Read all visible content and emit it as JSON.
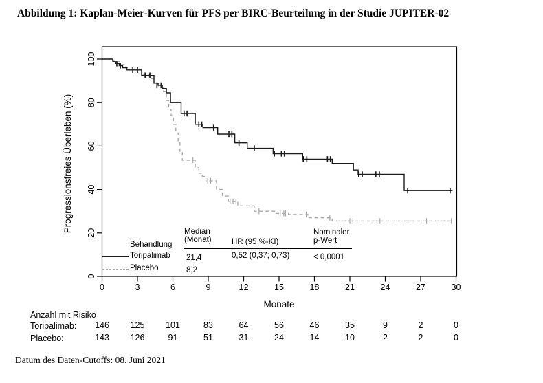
{
  "title": "Abbildung 1: Kaplan-Meier-Kurven für PFS per BIRC-Beurteilung in der Studie JUPITER-02",
  "footer": "Datum des Daten-Cutoffs: 08. Juni 2021",
  "chart_data": {
    "type": "line",
    "subtype": "kaplan-meier-step",
    "xlabel": "Monate",
    "ylabel": "Progressionsfreies  Überleben  (%)",
    "xlim": [
      0,
      30
    ],
    "ylim": [
      0,
      100
    ],
    "x_ticks": [
      0,
      3,
      6,
      9,
      12,
      15,
      18,
      21,
      24,
      27,
      30
    ],
    "y_ticks": [
      0,
      20,
      40,
      60,
      80,
      100
    ],
    "grid": false,
    "frame": true,
    "series": [
      {
        "name": "Toripalimab",
        "style": "solid",
        "color": "#1c1c1c",
        "steps": [
          [
            0,
            100
          ],
          [
            0.9,
            99
          ],
          [
            1.15,
            98
          ],
          [
            1.45,
            97
          ],
          [
            1.75,
            96
          ],
          [
            2.1,
            95
          ],
          [
            3.35,
            92.5
          ],
          [
            4.4,
            89
          ],
          [
            4.75,
            88
          ],
          [
            5.1,
            86.5
          ],
          [
            5.45,
            84.5
          ],
          [
            5.8,
            80
          ],
          [
            6.7,
            75
          ],
          [
            7.9,
            70
          ],
          [
            8.55,
            68.5
          ],
          [
            9.8,
            65.5
          ],
          [
            11.25,
            61.5
          ],
          [
            12.3,
            59
          ],
          [
            14.5,
            56.5
          ],
          [
            17.0,
            54
          ],
          [
            19.5,
            52
          ],
          [
            21.3,
            49
          ],
          [
            21.7,
            47
          ],
          [
            25.6,
            39.5
          ],
          [
            29.7,
            39.5
          ]
        ],
        "censors": [
          [
            1.25,
            98
          ],
          [
            1.55,
            97
          ],
          [
            2.6,
            95
          ],
          [
            3.0,
            95
          ],
          [
            3.65,
            92.5
          ],
          [
            4.05,
            92.5
          ],
          [
            4.65,
            88
          ],
          [
            5.0,
            88
          ],
          [
            6.95,
            75
          ],
          [
            7.2,
            75
          ],
          [
            8.2,
            70
          ],
          [
            8.45,
            70
          ],
          [
            9.45,
            68.5
          ],
          [
            10.75,
            65.5
          ],
          [
            11.0,
            65.5
          ],
          [
            11.6,
            61.5
          ],
          [
            12.9,
            59
          ],
          [
            14.6,
            56.5
          ],
          [
            15.2,
            56.5
          ],
          [
            15.45,
            56.5
          ],
          [
            17.05,
            54
          ],
          [
            17.35,
            54
          ],
          [
            19.1,
            54
          ],
          [
            19.35,
            54
          ],
          [
            21.75,
            47
          ],
          [
            22.05,
            47
          ],
          [
            23.2,
            47
          ],
          [
            23.5,
            47
          ],
          [
            25.9,
            39.5
          ],
          [
            29.5,
            39.5
          ]
        ]
      },
      {
        "name": "Placebo",
        "style": "dashed",
        "color": "#a8a8a8",
        "steps": [
          [
            0,
            100
          ],
          [
            1.0,
            99
          ],
          [
            1.5,
            97.5
          ],
          [
            2.0,
            96
          ],
          [
            2.45,
            95
          ],
          [
            3.35,
            93
          ],
          [
            4.0,
            91
          ],
          [
            4.4,
            89
          ],
          [
            4.8,
            87
          ],
          [
            5.2,
            85
          ],
          [
            5.45,
            81
          ],
          [
            5.65,
            77
          ],
          [
            5.85,
            74
          ],
          [
            6.05,
            70
          ],
          [
            6.25,
            66
          ],
          [
            6.45,
            62
          ],
          [
            6.6,
            57
          ],
          [
            6.8,
            53.5
          ],
          [
            7.9,
            50
          ],
          [
            8.2,
            47.5
          ],
          [
            8.5,
            46
          ],
          [
            8.8,
            44
          ],
          [
            9.7,
            40
          ],
          [
            10.2,
            37
          ],
          [
            10.7,
            34.5
          ],
          [
            11.5,
            32.5
          ],
          [
            12.9,
            30
          ],
          [
            14.7,
            29
          ],
          [
            15.8,
            28.5
          ],
          [
            17.45,
            27
          ],
          [
            19.5,
            25.5
          ],
          [
            29.8,
            25.5
          ]
        ],
        "censors": [
          [
            7.7,
            53.5
          ],
          [
            8.95,
            44
          ],
          [
            9.2,
            44
          ],
          [
            10.85,
            34.5
          ],
          [
            11.1,
            34.5
          ],
          [
            11.35,
            34.5
          ],
          [
            13.3,
            30
          ],
          [
            15.1,
            29
          ],
          [
            15.4,
            29
          ],
          [
            15.55,
            29
          ],
          [
            17.3,
            28.5
          ],
          [
            19.3,
            27
          ],
          [
            21.0,
            25.5
          ],
          [
            21.25,
            25.5
          ],
          [
            23.3,
            25.5
          ],
          [
            23.55,
            25.5
          ],
          [
            27.5,
            25.5
          ],
          [
            29.6,
            25.5
          ]
        ]
      }
    ]
  },
  "legend": {
    "col_treatment": "Behandlung",
    "col_median_line1": "Median",
    "col_median_line2": "(Monat)",
    "col_hr": "HR (95 %-KI)",
    "col_p_line1": "Nominaler",
    "col_p_line2": "p-Wert",
    "rows": [
      {
        "label": "Toripalimab",
        "median": "21,4",
        "hr": "0,52 (0,37; 0,73)",
        "p": "< 0,0001"
      },
      {
        "label": "Placebo",
        "median": "8,2",
        "hr": "",
        "p": ""
      }
    ]
  },
  "risk_table": {
    "title": "Anzahl mit Risiko",
    "rows": [
      {
        "label": "Toripalimab:",
        "counts": [
          146,
          125,
          101,
          83,
          64,
          56,
          46,
          35,
          9,
          2,
          0
        ]
      },
      {
        "label": "Placebo:",
        "counts": [
          143,
          126,
          91,
          51,
          31,
          24,
          14,
          10,
          2,
          2,
          0
        ]
      }
    ]
  }
}
